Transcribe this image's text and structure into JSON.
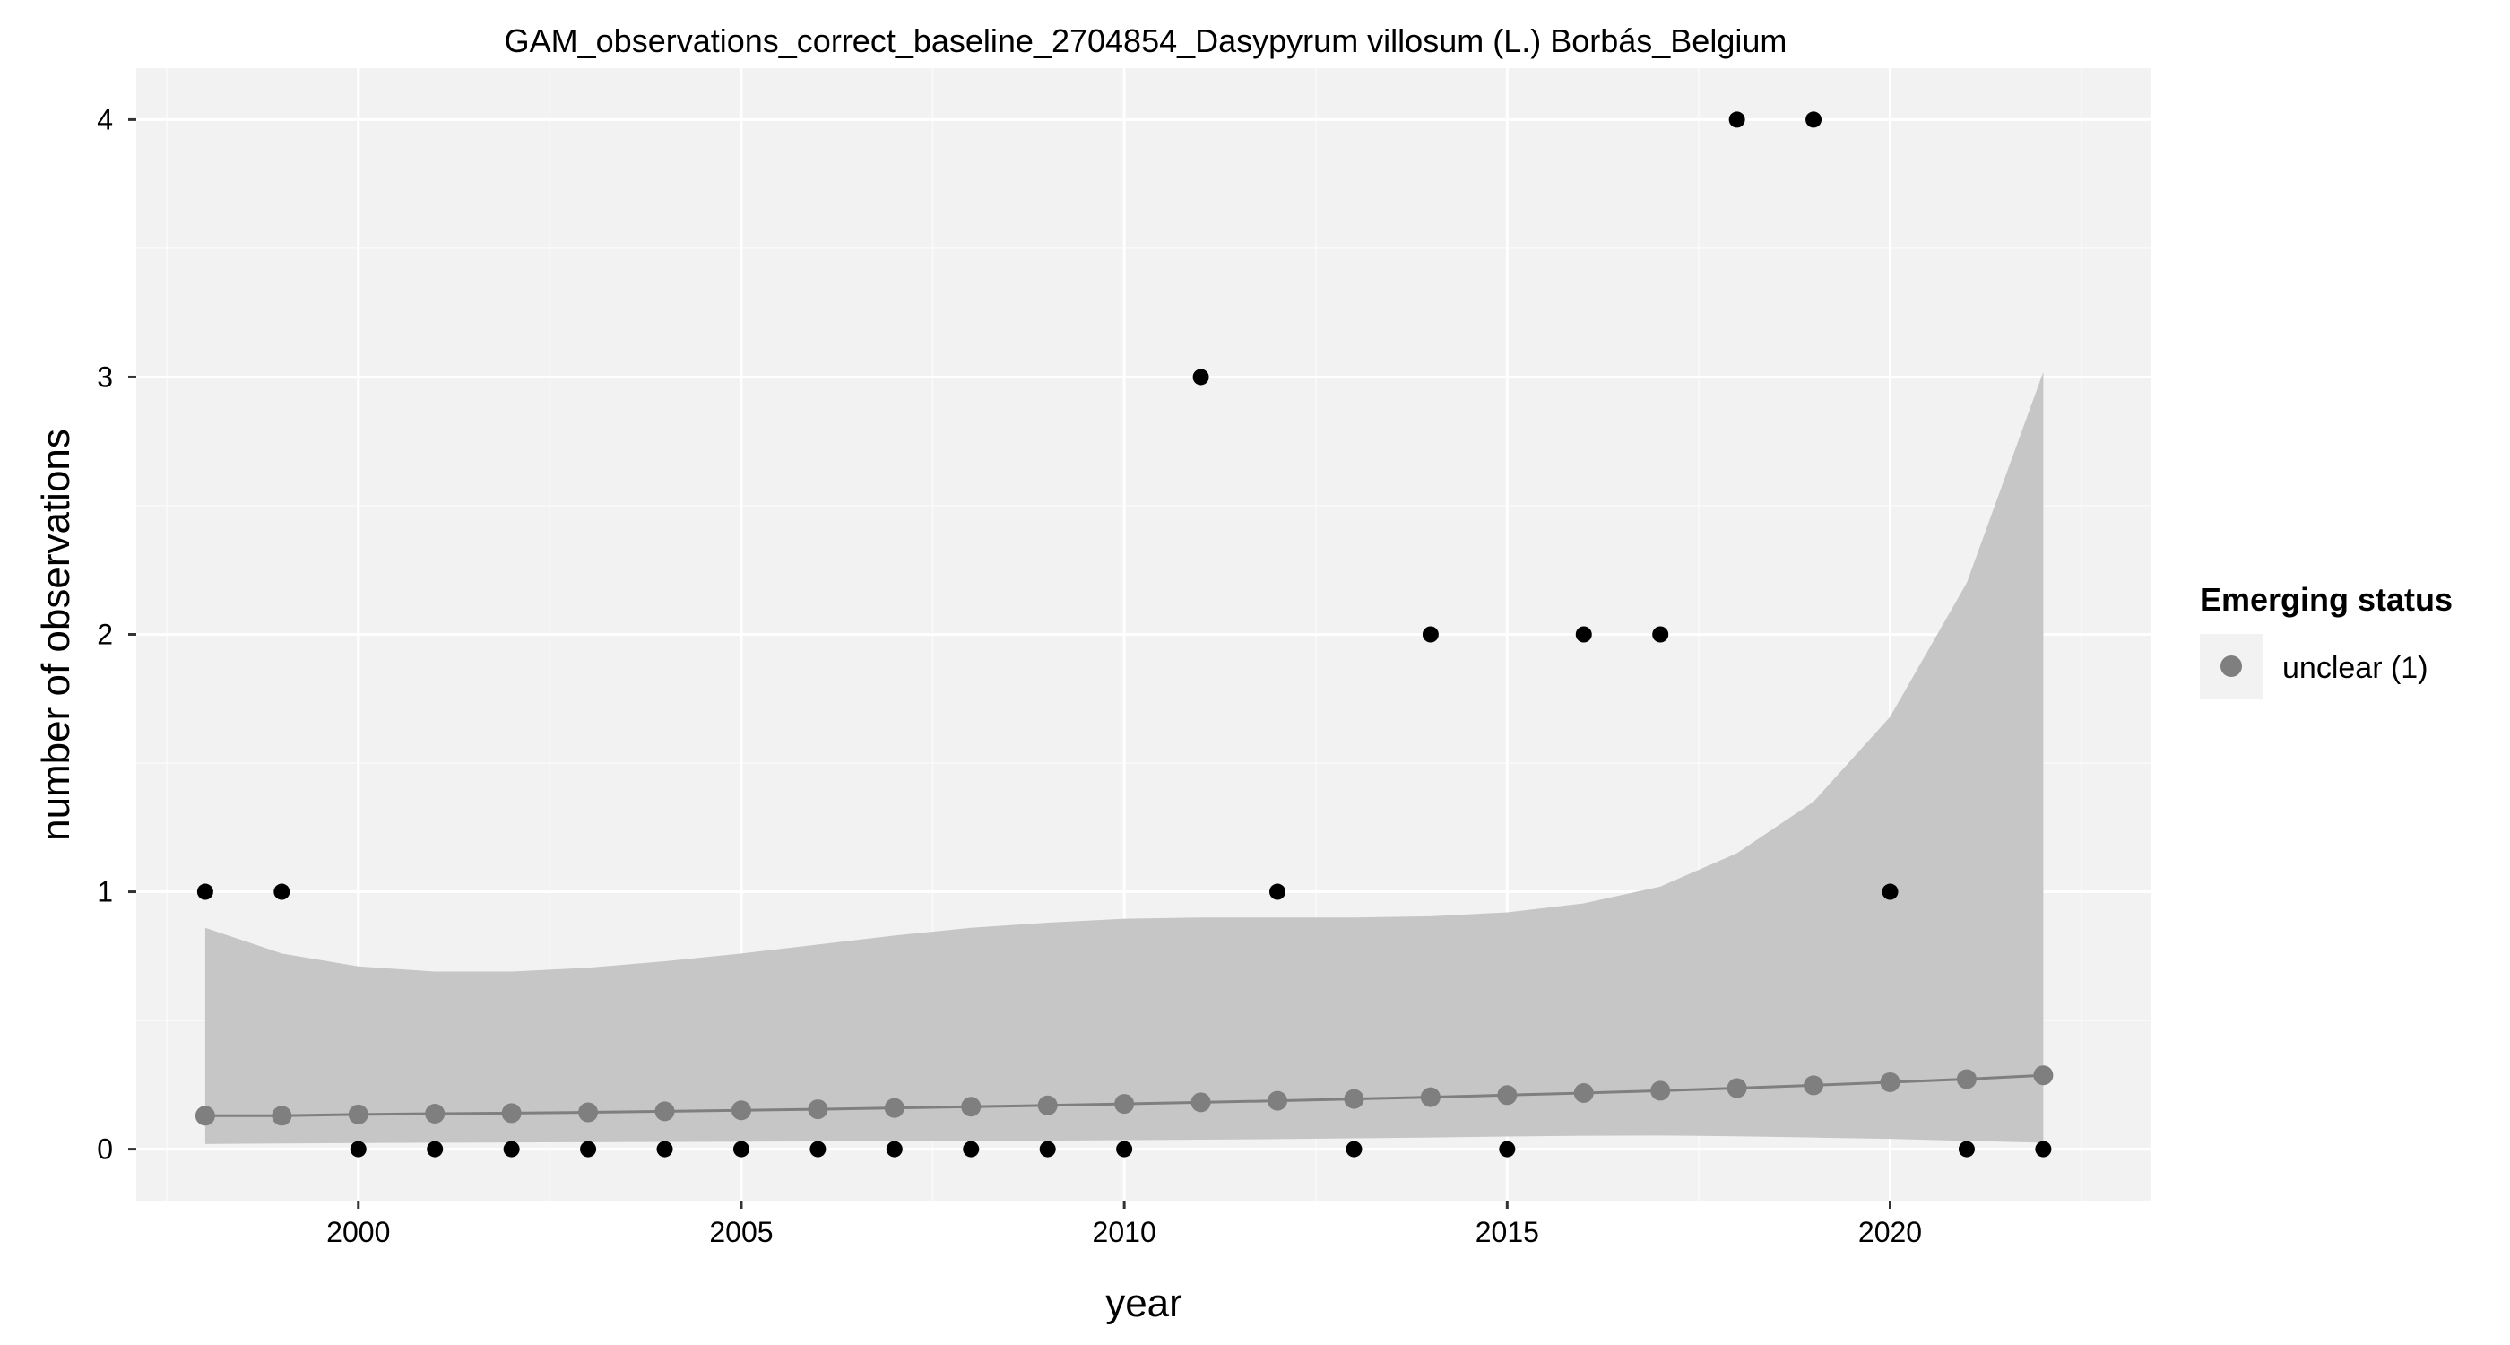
{
  "chart_data": {
    "type": "scatter",
    "title": "GAM_observations_correct_baseline_2704854_Dasypyrum villosum (L.) Borbás_Belgium",
    "xlabel": "year",
    "ylabel": "number of observations",
    "xlim": [
      1997.1,
      2023.4
    ],
    "ylim": [
      -0.2,
      4.2
    ],
    "x_ticks": [
      2000,
      2005,
      2010,
      2015,
      2020
    ],
    "y_ticks": [
      0,
      1,
      2,
      3,
      4
    ],
    "grid": true,
    "legend": {
      "title": "Emerging status",
      "position": "right",
      "entries": [
        {
          "label": "unclear (1)",
          "color": "#7f7f7f"
        }
      ]
    },
    "observations": {
      "x": [
        1998,
        1999,
        2000,
        2001,
        2002,
        2003,
        2004,
        2005,
        2006,
        2007,
        2008,
        2009,
        2010,
        2011,
        2012,
        2013,
        2014,
        2015,
        2016,
        2017,
        2018,
        2019,
        2020,
        2021,
        2022
      ],
      "y": [
        1,
        1,
        0,
        0,
        0,
        0,
        0,
        0,
        0,
        0,
        0,
        0,
        0,
        3,
        1,
        0,
        2,
        0,
        2,
        2,
        4,
        4,
        1,
        0,
        0
      ],
      "color": "#000000"
    },
    "fit": {
      "x": [
        1998,
        1999,
        2000,
        2001,
        2002,
        2003,
        2004,
        2005,
        2006,
        2007,
        2008,
        2009,
        2010,
        2011,
        2012,
        2013,
        2014,
        2015,
        2016,
        2017,
        2018,
        2019,
        2020,
        2021,
        2022
      ],
      "y": [
        0.13,
        0.13,
        0.135,
        0.138,
        0.14,
        0.143,
        0.147,
        0.151,
        0.155,
        0.16,
        0.165,
        0.17,
        0.176,
        0.182,
        0.188,
        0.195,
        0.202,
        0.21,
        0.218,
        0.227,
        0.237,
        0.248,
        0.26,
        0.272,
        0.287
      ],
      "lower": [
        0.02,
        0.022,
        0.024,
        0.025,
        0.026,
        0.027,
        0.028,
        0.029,
        0.03,
        0.031,
        0.032,
        0.033,
        0.035,
        0.037,
        0.039,
        0.042,
        0.045,
        0.049,
        0.052,
        0.053,
        0.05,
        0.045,
        0.04,
        0.032,
        0.025
      ],
      "upper": [
        0.86,
        0.76,
        0.71,
        0.69,
        0.69,
        0.705,
        0.73,
        0.76,
        0.795,
        0.83,
        0.86,
        0.88,
        0.895,
        0.9,
        0.9,
        0.9,
        0.905,
        0.92,
        0.955,
        1.02,
        1.15,
        1.35,
        1.68,
        2.2,
        3.02
      ],
      "line_color": "#7f7f7f",
      "ribbon_color": "#c6c6c6"
    },
    "colors": {
      "panel_background": "#f2f2f2",
      "grid_major": "#ffffff",
      "grid_minor": "#fafafa",
      "legend_key_background": "#f2f2f2"
    }
  }
}
